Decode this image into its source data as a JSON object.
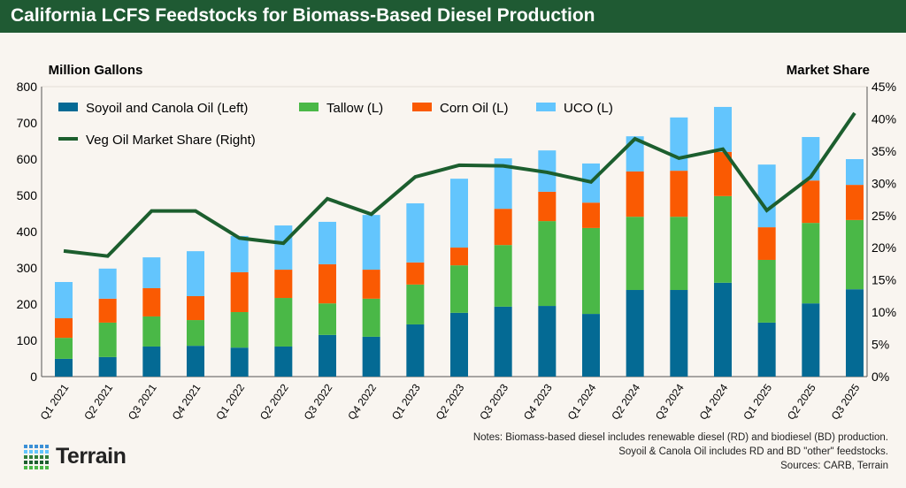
{
  "header": {
    "title": "California LCFS Feedstocks for Biomass-Based Diesel Production"
  },
  "chart_data": {
    "type": "bar",
    "stacked": true,
    "title": "California LCFS Feedstocks for Biomass-Based Diesel Production",
    "ylabel": "Million Gallons",
    "y2label": "Market Share",
    "ylim": [
      0,
      800
    ],
    "y2lim": [
      0,
      45
    ],
    "yticks": [
      "0",
      "100",
      "200",
      "300",
      "400",
      "500",
      "600",
      "700",
      "800"
    ],
    "y2ticks": [
      "0%",
      "5%",
      "10%",
      "15%",
      "20%",
      "25%",
      "30%",
      "35%",
      "40%",
      "45%"
    ],
    "grid": false,
    "legend_placement": "top-left",
    "categories": [
      "Q1 2021",
      "Q2 2021",
      "Q3 2021",
      "Q4 2021",
      "Q1 2022",
      "Q2 2022",
      "Q3 2022",
      "Q4 2022",
      "Q1 2023",
      "Q2 2023",
      "Q3 2023",
      "Q4 2023",
      "Q1 2024",
      "Q2 2024",
      "Q3 2024",
      "Q4 2024",
      "Q1 2025",
      "Q2 2025",
      "Q3 2025"
    ],
    "series": [
      {
        "name": "Soyoil and Canola Oil (Left)",
        "type": "bar",
        "axis": "left",
        "color": "#046a94",
        "values": [
          49,
          54,
          83,
          85,
          80,
          83,
          115,
          110,
          144,
          176,
          193,
          195,
          173,
          239,
          239,
          259,
          149,
          202,
          241
        ]
      },
      {
        "name": "Tallow (L)",
        "type": "bar",
        "axis": "left",
        "color": "#4ab847",
        "values": [
          58,
          95,
          83,
          71,
          98,
          134,
          87,
          105,
          110,
          131,
          170,
          234,
          237,
          202,
          202,
          239,
          173,
          222,
          191
        ]
      },
      {
        "name": "Corn Oil (L)",
        "type": "bar",
        "axis": "left",
        "color": "#fa5a02",
        "values": [
          54,
          66,
          78,
          66,
          110,
          78,
          108,
          80,
          61,
          49,
          100,
          81,
          70,
          125,
          127,
          122,
          90,
          117,
          97
        ]
      },
      {
        "name": "UCO (L)",
        "type": "bar",
        "axis": "left",
        "color": "#63c5fd",
        "values": [
          100,
          83,
          85,
          124,
          100,
          122,
          117,
          151,
          163,
          190,
          139,
          114,
          108,
          97,
          147,
          124,
          173,
          120,
          71
        ]
      },
      {
        "name": "Veg Oil Market Share (Right)",
        "type": "line",
        "axis": "right",
        "color": "#1c5e2e",
        "unit": "%",
        "values": [
          19.5,
          18.7,
          25.7,
          25.7,
          21.5,
          20.7,
          27.6,
          25.2,
          31.0,
          32.8,
          32.7,
          31.7,
          30.2,
          36.9,
          33.9,
          35.3,
          25.8,
          31.0,
          40.9
        ]
      }
    ]
  },
  "notes": {
    "line1": "Notes: Biomass-based diesel includes renewable diesel (RD) and biodiesel (BD) production.",
    "line2": "Soyoil & Canola Oil includes RD and BD \"other\" feedstocks.",
    "line3": "Sources: CARB, Terrain"
  },
  "logo": {
    "text": "Terrain"
  }
}
